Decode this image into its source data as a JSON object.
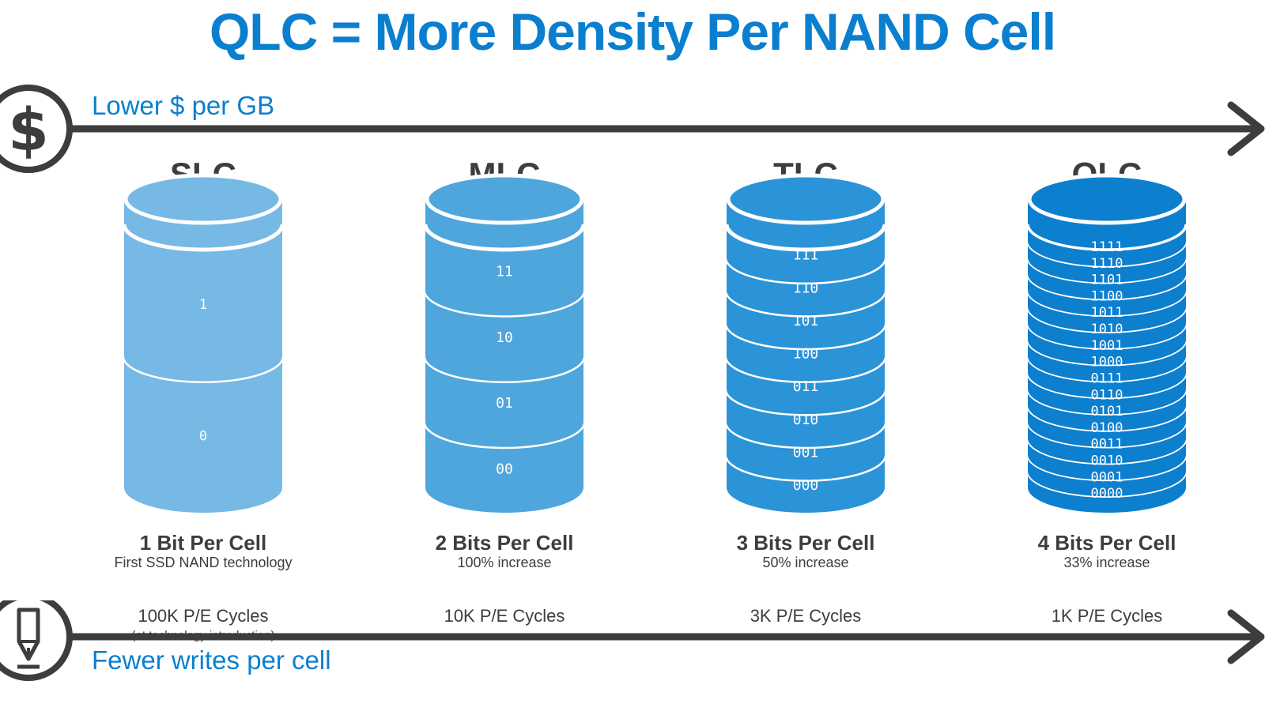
{
  "title": "QLC = More Density Per NAND Cell",
  "top_axis": {
    "label": "Lower $ per GB",
    "icon": "dollar-icon"
  },
  "bottom_axis": {
    "label": "Fewer writes per cell",
    "icon": "pen-icon"
  },
  "colors": {
    "accent": "#0a7fcf",
    "axis": "#3d3d3d",
    "text": "#3d3d3d",
    "slc": "#76b9e4",
    "mlc": "#4ea6dd",
    "tlc": "#2b93d8",
    "qlc": "#0c7fcf"
  },
  "cells": [
    {
      "name": "SLC",
      "bits_per_cell": "1 Bit Per Cell",
      "subtitle": "First SSD NAND technology",
      "cycles": "100K P/E Cycles",
      "note": "(at technology introduction)",
      "states": [
        "1",
        "0"
      ]
    },
    {
      "name": "MLC",
      "bits_per_cell": "2 Bits Per Cell",
      "subtitle": "100% increase",
      "cycles": "10K P/E Cycles",
      "states": [
        "11",
        "10",
        "01",
        "00"
      ]
    },
    {
      "name": "TLC",
      "bits_per_cell": "3 Bits Per Cell",
      "subtitle": "50% increase",
      "cycles": "3K P/E Cycles",
      "states": [
        "111",
        "110",
        "101",
        "100",
        "011",
        "010",
        "001",
        "000"
      ]
    },
    {
      "name": "QLC",
      "bits_per_cell": "4 Bits Per Cell",
      "subtitle": "33% increase",
      "cycles": "1K P/E Cycles",
      "states": [
        "1111",
        "1110",
        "1101",
        "1100",
        "1011",
        "1010",
        "1001",
        "1000",
        "0111",
        "0110",
        "0101",
        "0100",
        "0011",
        "0010",
        "0001",
        "0000"
      ]
    }
  ]
}
